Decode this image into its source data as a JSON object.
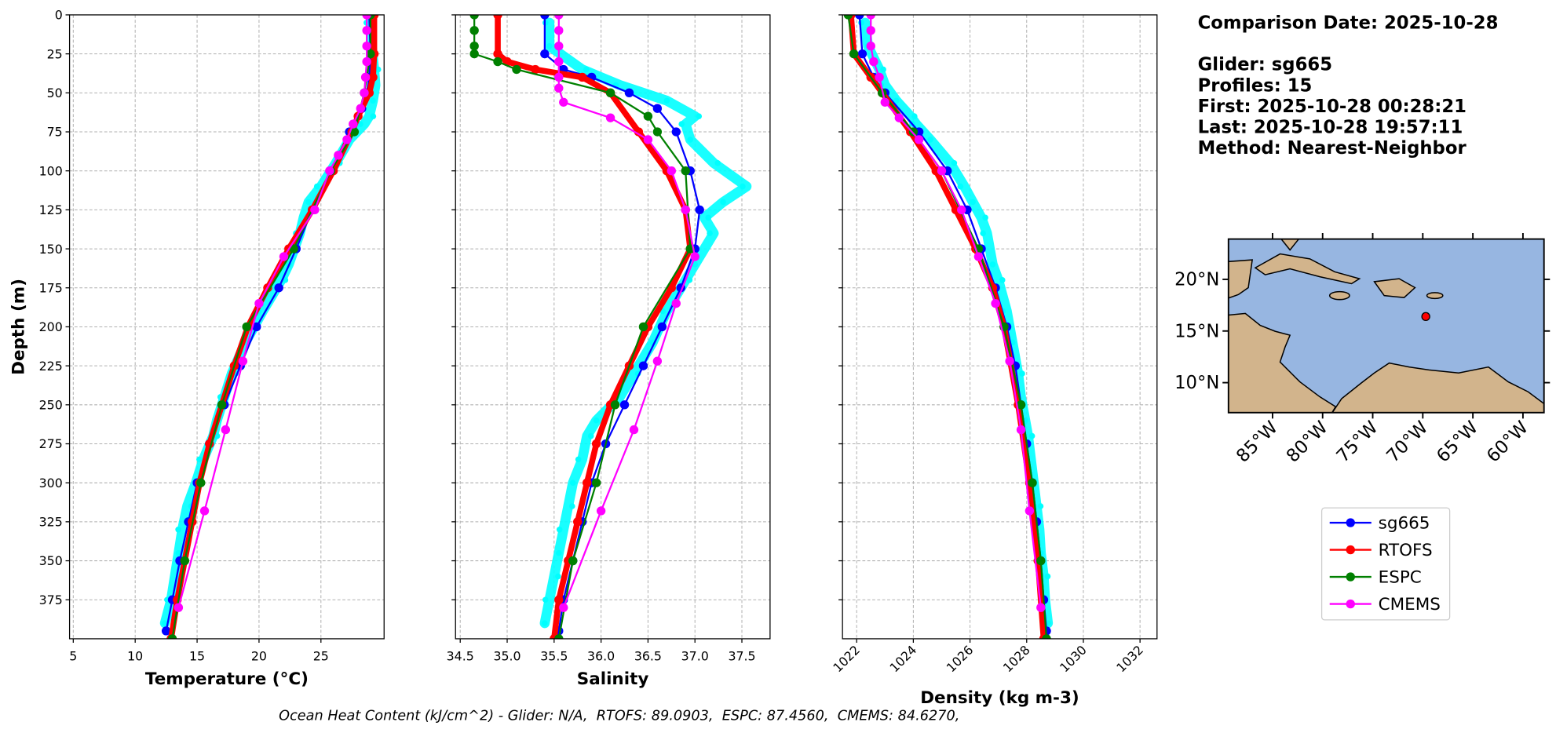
{
  "chart_data": [
    {
      "type": "line",
      "xlabel": "Temperature (°C)",
      "ylabel": "Depth (m)",
      "xlim": [
        4.7,
        30.1
      ],
      "xticks": [
        5,
        10,
        15,
        20,
        25
      ],
      "ylim": [
        400,
        0
      ],
      "yticks": [
        0,
        25,
        50,
        75,
        100,
        125,
        150,
        175,
        200,
        225,
        250,
        275,
        300,
        325,
        350,
        375
      ],
      "show_ytick_labels": true,
      "grid": true,
      "raw": {
        "color": "#00ffff",
        "depth": [
          5,
          20,
          35,
          45,
          55,
          65,
          70,
          80,
          95,
          110,
          120,
          130,
          140,
          160,
          170,
          190,
          210,
          230,
          245,
          260,
          270,
          285,
          300,
          315,
          330,
          345,
          360,
          375,
          390
        ],
        "values": [
          29.0,
          29.1,
          29.3,
          29.4,
          29.2,
          28.9,
          28.5,
          27.3,
          26.2,
          25.0,
          24.0,
          23.6,
          23.3,
          22.4,
          21.8,
          20.3,
          18.9,
          17.8,
          17.2,
          16.6,
          16.3,
          15.5,
          14.9,
          14.2,
          13.8,
          13.5,
          13.2,
          12.9,
          12.4
        ]
      },
      "series": [
        {
          "name": "sg665",
          "color": "#0000ff",
          "depth": [
            0,
            25,
            40,
            50,
            60,
            75,
            100,
            125,
            150,
            175,
            200,
            225,
            250,
            275,
            300,
            325,
            350,
            375,
            395
          ],
          "values": [
            28.9,
            29.0,
            28.9,
            28.7,
            28.3,
            27.3,
            25.8,
            24.3,
            23.0,
            21.6,
            19.8,
            18.5,
            17.2,
            16.0,
            15.0,
            14.3,
            13.6,
            13.0,
            12.5
          ]
        },
        {
          "name": "RTOFS",
          "color": "#ff0000",
          "depth": [
            0,
            25,
            40,
            50,
            65,
            75,
            100,
            125,
            150,
            175,
            200,
            225,
            250,
            275,
            300,
            325,
            350,
            375,
            400
          ],
          "values": [
            29.3,
            29.3,
            29.2,
            28.9,
            28.0,
            27.5,
            26.0,
            24.3,
            22.4,
            20.7,
            19.1,
            18.0,
            17.0,
            16.0,
            15.2,
            14.6,
            14.0,
            13.4,
            12.9
          ]
        },
        {
          "name": "ESPC",
          "color": "#008000",
          "depth": [
            0,
            25,
            50,
            75,
            100,
            150,
            200,
            250,
            300,
            350,
            400
          ],
          "values": [
            29.0,
            29.0,
            28.5,
            27.7,
            25.8,
            22.8,
            19.0,
            17.0,
            15.3,
            14.0,
            13.0
          ]
        },
        {
          "name": "CMEMS",
          "color": "#ff00ff",
          "depth": [
            0,
            10,
            20,
            30,
            40,
            50,
            60,
            70,
            80,
            90,
            100,
            125,
            155,
            185,
            222,
            266,
            318,
            380
          ],
          "values": [
            28.7,
            28.7,
            28.7,
            28.7,
            28.6,
            28.5,
            28.2,
            27.6,
            27.1,
            26.4,
            25.7,
            24.5,
            22.0,
            20.0,
            18.7,
            17.3,
            15.6,
            13.5
          ]
        }
      ]
    },
    {
      "type": "line",
      "xlabel": "Salinity",
      "xlim": [
        34.45,
        37.8
      ],
      "xticks": [
        34.5,
        {
          "value": 35,
          "label": "35.0"
        },
        35.5,
        {
          "value": 36,
          "label": "36.0"
        },
        36.5,
        {
          "value": 37,
          "label": "37.0"
        },
        37.5
      ],
      "ylim": [
        400,
        0
      ],
      "yticks": [
        0,
        25,
        50,
        75,
        100,
        125,
        150,
        175,
        200,
        225,
        250,
        275,
        300,
        325,
        350,
        375
      ],
      "show_ytick_labels": false,
      "grid": true,
      "raw": {
        "color": "#00ffff",
        "depth": [
          5,
          20,
          35,
          45,
          55,
          65,
          70,
          80,
          95,
          110,
          120,
          130,
          140,
          160,
          170,
          190,
          210,
          230,
          245,
          260,
          270,
          285,
          300,
          315,
          330,
          345,
          360,
          375,
          390
        ],
        "values": [
          35.45,
          35.45,
          35.8,
          36.2,
          36.7,
          37.0,
          36.9,
          36.95,
          37.2,
          37.55,
          37.3,
          37.1,
          37.2,
          37.0,
          36.9,
          36.7,
          36.55,
          36.35,
          36.2,
          35.95,
          35.85,
          35.8,
          35.7,
          35.65,
          35.6,
          35.55,
          35.5,
          35.45,
          35.4
        ]
      },
      "series": [
        {
          "name": "sg665",
          "color": "#0000ff",
          "depth": [
            0,
            25,
            35,
            40,
            50,
            60,
            75,
            100,
            125,
            150,
            175,
            200,
            225,
            250,
            275,
            300,
            325,
            350,
            375,
            395
          ],
          "values": [
            35.4,
            35.4,
            35.6,
            35.9,
            36.3,
            36.6,
            36.8,
            36.95,
            37.05,
            37.0,
            36.85,
            36.65,
            36.45,
            36.25,
            36.05,
            35.9,
            35.8,
            35.7,
            35.6,
            35.55
          ]
        },
        {
          "name": "RTOFS",
          "color": "#ff0000",
          "depth": [
            0,
            25,
            30,
            35,
            40,
            50,
            75,
            100,
            125,
            150,
            175,
            200,
            225,
            250,
            275,
            300,
            325,
            350,
            375,
            400
          ],
          "values": [
            34.9,
            34.9,
            35.0,
            35.3,
            35.8,
            36.1,
            36.4,
            36.7,
            36.9,
            36.95,
            36.75,
            36.5,
            36.3,
            36.1,
            35.95,
            35.85,
            35.75,
            35.65,
            35.55,
            35.5
          ]
        },
        {
          "name": "ESPC",
          "color": "#008000",
          "depth": [
            0,
            10,
            20,
            25,
            30,
            35,
            50,
            65,
            75,
            100,
            150,
            200,
            250,
            300,
            350,
            400
          ],
          "values": [
            34.65,
            34.65,
            34.65,
            34.65,
            34.9,
            35.1,
            36.1,
            36.5,
            36.6,
            36.9,
            36.95,
            36.45,
            36.15,
            35.95,
            35.7,
            35.55
          ]
        },
        {
          "name": "CMEMS",
          "color": "#ff00ff",
          "depth": [
            0,
            10,
            20,
            30,
            40,
            47,
            56,
            66,
            80,
            100,
            125,
            155,
            185,
            222,
            266,
            318,
            380
          ],
          "values": [
            35.55,
            35.55,
            35.55,
            35.55,
            35.55,
            35.55,
            35.6,
            36.1,
            36.5,
            36.75,
            36.9,
            37.0,
            36.8,
            36.6,
            36.35,
            36.0,
            35.6
          ]
        }
      ]
    },
    {
      "type": "line",
      "xlabel": "Density (kg m-3)",
      "xlim": [
        1021.5,
        1032.6
      ],
      "xticks": [
        1022,
        1024,
        1026,
        1028,
        1030,
        1032
      ],
      "rotate_xticks": true,
      "ylim": [
        400,
        0
      ],
      "yticks": [
        0,
        25,
        50,
        75,
        100,
        125,
        150,
        175,
        200,
        225,
        250,
        275,
        300,
        325,
        350,
        375
      ],
      "show_ytick_labels": false,
      "grid": true,
      "raw": {
        "color": "#00ffff",
        "depth": [
          5,
          20,
          35,
          45,
          55,
          65,
          70,
          80,
          95,
          110,
          120,
          130,
          140,
          160,
          170,
          190,
          210,
          230,
          245,
          260,
          270,
          285,
          300,
          315,
          330,
          345,
          360,
          375,
          390
        ],
        "values": [
          1022.3,
          1022.4,
          1022.8,
          1023.0,
          1023.4,
          1023.9,
          1024.1,
          1024.6,
          1025.3,
          1025.8,
          1026.1,
          1026.4,
          1026.6,
          1026.8,
          1027.0,
          1027.3,
          1027.5,
          1027.7,
          1027.8,
          1027.95,
          1028.05,
          1028.15,
          1028.25,
          1028.35,
          1028.45,
          1028.5,
          1028.6,
          1028.65,
          1028.75
        ]
      },
      "series": [
        {
          "name": "sg665",
          "color": "#0000ff",
          "depth": [
            0,
            25,
            40,
            50,
            75,
            100,
            125,
            150,
            175,
            200,
            225,
            250,
            275,
            300,
            325,
            350,
            375,
            395
          ],
          "values": [
            1022.1,
            1022.2,
            1022.6,
            1023.0,
            1024.2,
            1025.2,
            1025.9,
            1026.4,
            1026.9,
            1027.3,
            1027.6,
            1027.8,
            1028.0,
            1028.2,
            1028.35,
            1028.5,
            1028.6,
            1028.7
          ]
        },
        {
          "name": "RTOFS",
          "color": "#ff0000",
          "depth": [
            0,
            25,
            40,
            50,
            75,
            100,
            125,
            150,
            175,
            200,
            250,
            300,
            350,
            400
          ],
          "values": [
            1021.8,
            1021.9,
            1022.5,
            1022.9,
            1023.9,
            1024.8,
            1025.5,
            1026.2,
            1026.8,
            1027.2,
            1027.7,
            1028.1,
            1028.4,
            1028.6
          ]
        },
        {
          "name": "ESPC",
          "color": "#008000",
          "depth": [
            0,
            25,
            50,
            75,
            100,
            150,
            200,
            250,
            300,
            350,
            400
          ],
          "values": [
            1021.7,
            1021.9,
            1022.9,
            1024.0,
            1025.0,
            1026.3,
            1027.2,
            1027.8,
            1028.2,
            1028.5,
            1028.7
          ]
        },
        {
          "name": "CMEMS",
          "color": "#ff00ff",
          "depth": [
            0,
            10,
            20,
            30,
            40,
            56,
            66,
            80,
            100,
            125,
            155,
            185,
            222,
            266,
            318,
            380
          ],
          "values": [
            1022.5,
            1022.5,
            1022.5,
            1022.6,
            1022.8,
            1023.0,
            1023.5,
            1024.2,
            1025.0,
            1025.7,
            1026.3,
            1026.9,
            1027.4,
            1027.8,
            1028.1,
            1028.5
          ]
        }
      ]
    }
  ],
  "info": [
    "Comparison Date: 2025-10-28",
    "Glider: sg665",
    "Profiles: 15",
    "First: 2025-10-28 00:28:21",
    "Last: 2025-10-28 19:57:11",
    "Method: Nearest-Neighbor"
  ],
  "map": {
    "lonlim": [
      -89.4,
      -57.9
    ],
    "latlim": [
      7.1,
      23.9
    ],
    "lat_ticks": [
      {
        "value": 20,
        "label": "20°N"
      },
      {
        "value": 15,
        "label": "15°N"
      },
      {
        "value": 10,
        "label": "10°N"
      }
    ],
    "lon_ticks": [
      {
        "value": -85,
        "label": "85°W"
      },
      {
        "value": -80,
        "label": "80°W"
      },
      {
        "value": -75,
        "label": "75°W"
      },
      {
        "value": -70,
        "label": "70°W"
      },
      {
        "value": -65,
        "label": "65°W"
      },
      {
        "value": -60,
        "label": "60°W"
      }
    ],
    "point": {
      "lon": -69.7,
      "lat": 16.4,
      "color": "#ff0000"
    }
  },
  "footer": "Ocean Heat Content (kJ/cm^2) - Glider: N/A,  RTOFS: 89.0903,  ESPC: 87.4560,  CMEMS: 84.6270,"
}
